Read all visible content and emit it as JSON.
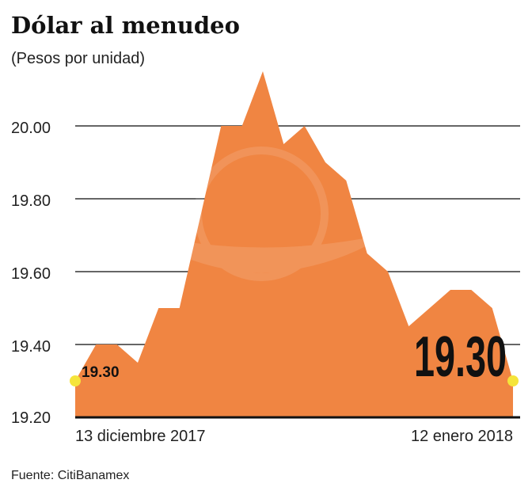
{
  "chart_data": {
    "type": "area",
    "title": "Dólar al menudeo",
    "subtitle": "(Pesos por unidad)",
    "xlabel": "",
    "ylabel": "",
    "x_tick_labels": [
      "13 diciembre 2017",
      "12 enero 2018"
    ],
    "y_ticks": [
      "19.20",
      "19.40",
      "19.60",
      "19.80",
      "20.00"
    ],
    "ylim": [
      19.2,
      20.2
    ],
    "grid": true,
    "values": [
      19.3,
      19.4,
      19.4,
      19.35,
      19.5,
      19.5,
      19.75,
      20.0,
      20.0,
      20.15,
      19.95,
      20.0,
      19.9,
      19.85,
      19.65,
      19.6,
      19.45,
      19.5,
      19.55,
      19.55,
      19.5,
      19.3
    ],
    "annotations": {
      "start": "19.30",
      "end": "19.30"
    },
    "source": "Fuente: CitiBanamex",
    "colors": {
      "area": "#F08542",
      "marker": "#F5E43A",
      "grid": "#333333"
    }
  }
}
